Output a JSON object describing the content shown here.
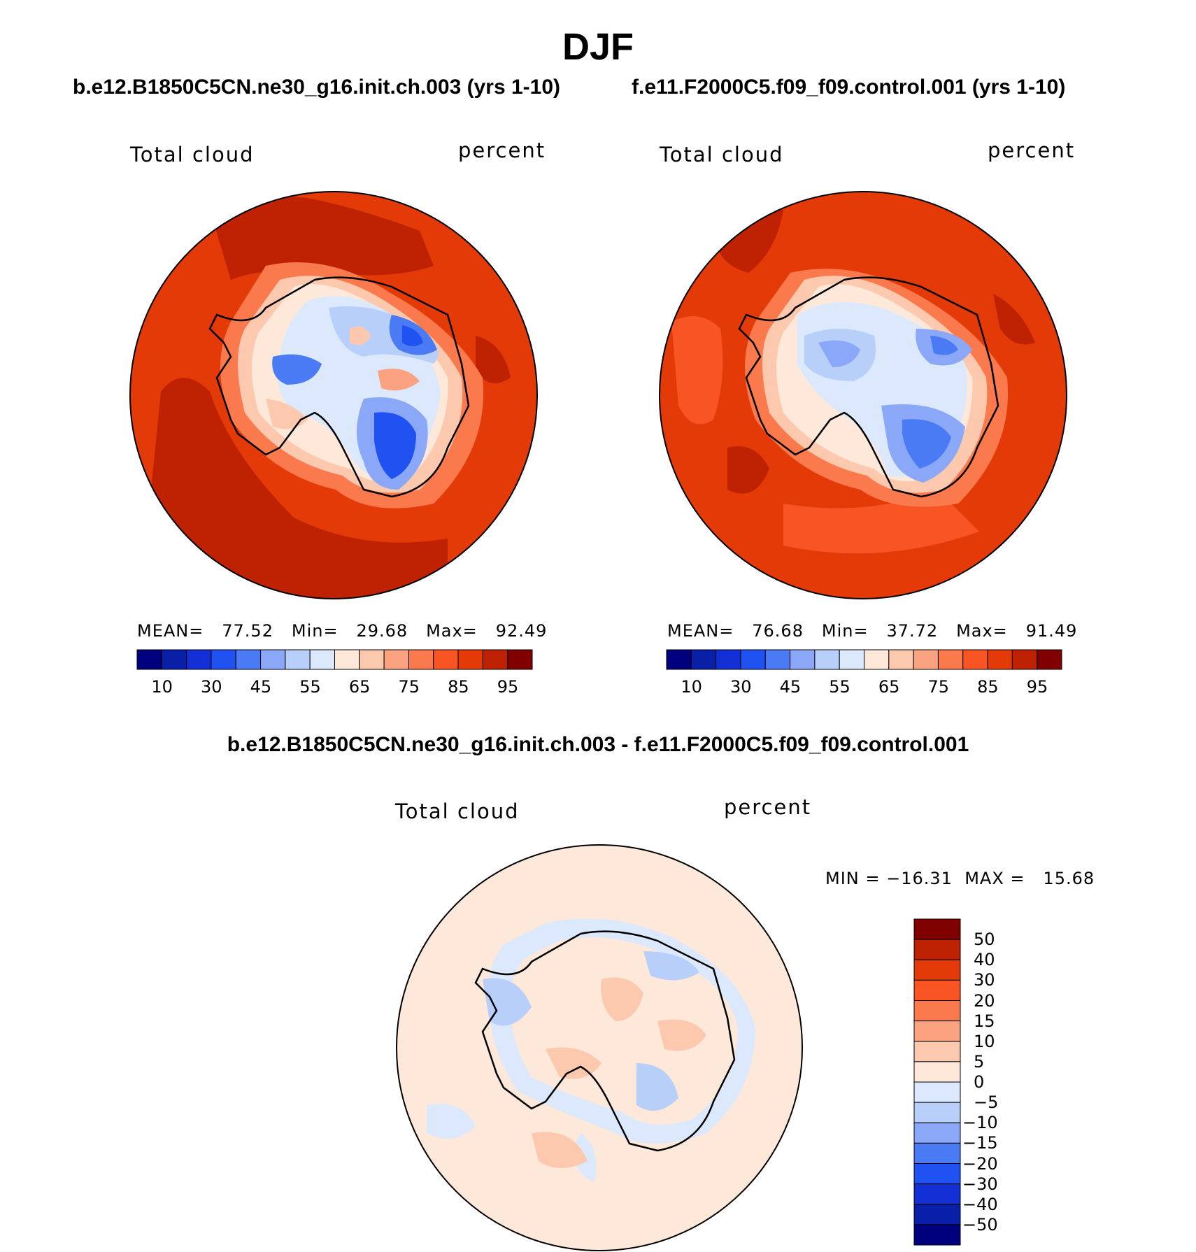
{
  "title": "DJF",
  "panels": [
    {
      "case_title": "b.e12.B1850C5CN.ne30_g16.init.ch.003 (yrs 1-10)",
      "variable": "Total cloud",
      "units": "percent",
      "stats": {
        "mean_label": "MEAN=",
        "mean": "77.52",
        "min_label": "Min=",
        "min": "29.68",
        "max_label": "Max=",
        "max": "92.49"
      }
    },
    {
      "case_title": "f.e11.F2000C5.f09_f09.control.001 (yrs 1-10)",
      "variable": "Total cloud",
      "units": "percent",
      "stats": {
        "mean_label": "MEAN=",
        "mean": "76.68",
        "min_label": "Min=",
        "min": "37.72",
        "max_label": "Max=",
        "max": "91.49"
      }
    }
  ],
  "colorbar": {
    "colors": [
      "#00007f",
      "#0a1fa8",
      "#1330d6",
      "#2052f2",
      "#4a7bf5",
      "#8aa8f7",
      "#b8cffa",
      "#dce9fc",
      "#fde8da",
      "#fcc9ae",
      "#fba280",
      "#fa7a4e",
      "#f95524",
      "#e33a08",
      "#bf2203",
      "#800000"
    ],
    "tick_labels": [
      "10",
      "30",
      "45",
      "55",
      "65",
      "75",
      "85",
      "95"
    ]
  },
  "difference": {
    "title": "b.e12.B1850C5CN.ne30_g16.init.ch.003 - f.e11.F2000C5.f09_f09.control.001",
    "variable": "Total cloud",
    "units": "percent",
    "min_label": "MIN =",
    "min": "−16.31",
    "max_label": "MAX =",
    "max": "15.68",
    "colorbar": {
      "colors": [
        "#800000",
        "#bf2203",
        "#e33a08",
        "#f95524",
        "#fa7a4e",
        "#fba280",
        "#fcc9ae",
        "#fde8da",
        "#dce9fc",
        "#b8cffa",
        "#8aa8f7",
        "#4a7bf5",
        "#2052f2",
        "#1330d6",
        "#0a1fa8",
        "#00007f"
      ],
      "labels": [
        "50",
        "40",
        "30",
        "20",
        "15",
        "10",
        "5",
        "0",
        "−5",
        "−10",
        "−15",
        "−20",
        "−30",
        "−40",
        "−50"
      ]
    }
  }
}
